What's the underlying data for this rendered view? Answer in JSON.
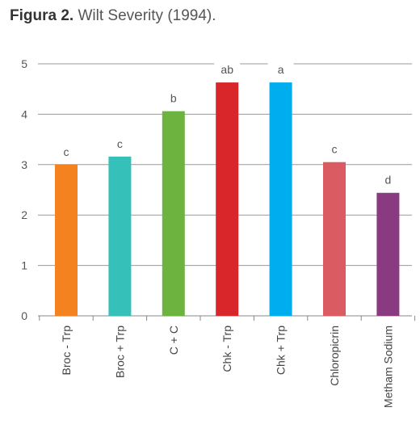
{
  "title": {
    "prefix": "Figura 2.",
    "text": "Wilt Severity (1994)."
  },
  "chart_data": {
    "type": "bar",
    "categories": [
      "Broc - Trp",
      "Broc + Trp",
      "C + C",
      "Chk - Trp",
      "Chk + Trp",
      "Chloropicrin",
      "Metham Sodium"
    ],
    "values": [
      3.0,
      3.16,
      4.06,
      4.63,
      4.63,
      3.05,
      2.44
    ],
    "labels": [
      "c",
      "c",
      "b",
      "ab",
      "a",
      "c",
      "d"
    ],
    "colors": [
      "#f4831f",
      "#35c0b9",
      "#6db33f",
      "#d8262b",
      "#00aeef",
      "#db5b62",
      "#8a3a80"
    ],
    "ylim": [
      0,
      5
    ],
    "yticks": [
      0,
      1,
      2,
      3,
      4,
      5
    ],
    "grid": true
  }
}
